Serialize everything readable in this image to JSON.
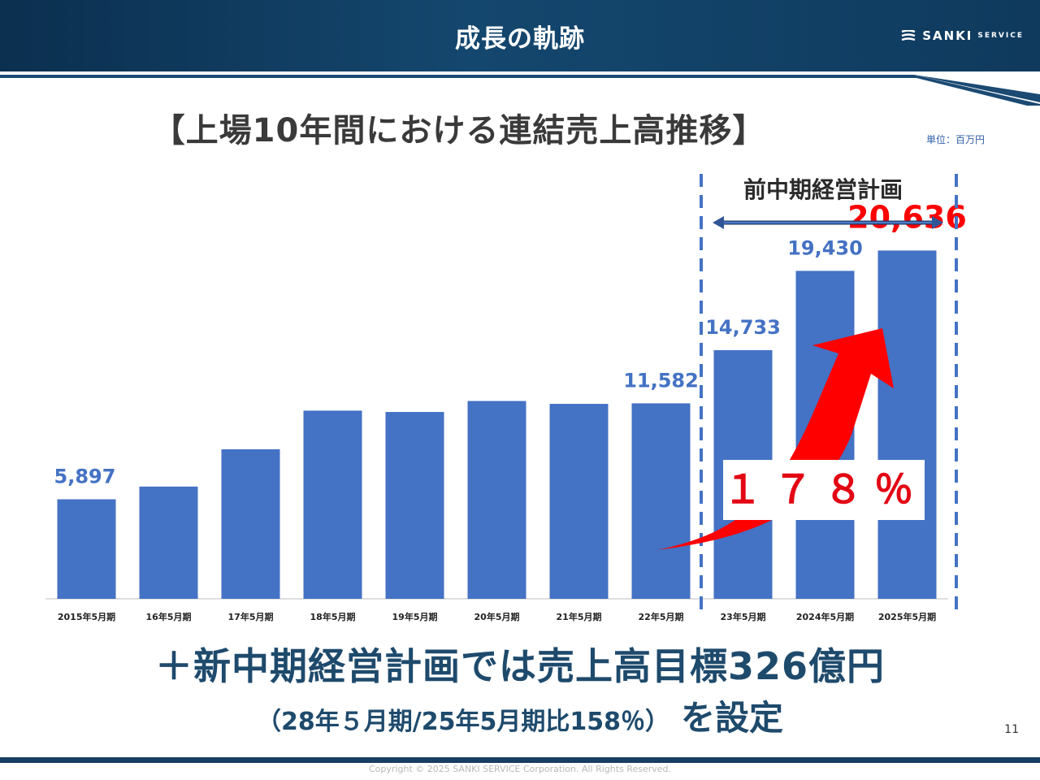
{
  "header": {
    "title": "成長の軌跡",
    "logo_name": "SANKI",
    "logo_sub": "SERVICE"
  },
  "subtitle": "【上場10年間における連結売上高推移】",
  "unit": "単位：百万円",
  "plan_label": "前中期経営計画",
  "callout": "１７８％",
  "conclusion": {
    "line1": "＋新中期経営計画では売上高目標326億円",
    "line2_small": "（28年５月期/25年5月期比158％）",
    "line2_big": "を設定"
  },
  "page_number": "11",
  "copyright": "Copyright © 2025 SANKI SERVICE Corporation. All Rights Reserved.",
  "colors": {
    "bar": "#4472c4",
    "value_label": "#4472c4",
    "highlight": "#ff0000",
    "dashed": "#4472c4",
    "header": "#14476e"
  },
  "chart_data": {
    "type": "bar",
    "title": "上場10年間における連結売上高推移",
    "unit": "百万円",
    "categories": [
      "2015年5月期",
      "16年5月期",
      "17年5月期",
      "18年5月期",
      "19年5月期",
      "20年5月期",
      "21年5月期",
      "22年5月期",
      "23年5月期",
      "2024年5月期",
      "2025年5月期"
    ],
    "values": [
      5897,
      6650,
      8860,
      11150,
      11070,
      11720,
      11550,
      11582,
      14733,
      19430,
      20636
    ],
    "labels": [
      "5,897",
      null,
      null,
      null,
      null,
      null,
      null,
      "11,582",
      "14,733",
      "19,430",
      "20,636"
    ],
    "highlight_index": 10,
    "ylim": [
      0,
      22000
    ],
    "plan_range": [
      "23年5月期",
      "2025年5月期"
    ],
    "growth_annotation": "１７８％"
  }
}
